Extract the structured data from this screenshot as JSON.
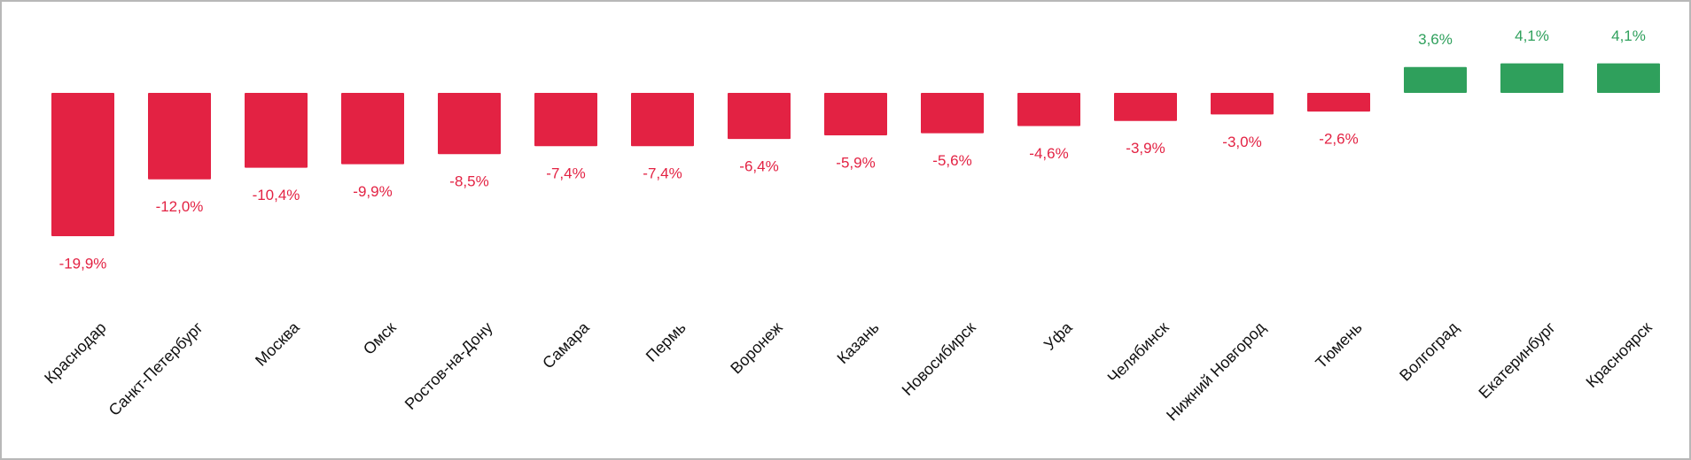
{
  "chart_data": {
    "type": "bar",
    "categories": [
      "Краснодар",
      "Санкт-Петербург",
      "Москва",
      "Омск",
      "Ростов-на-Дону",
      "Самара",
      "Пермь",
      "Воронеж",
      "Казань",
      "Новосибирск",
      "Уфа",
      "Челябинск",
      "Нижний Новгород",
      "Тюмень",
      "Волгоград",
      "Екатеринбург",
      "Красноярск"
    ],
    "values": [
      -19.9,
      -12.0,
      -10.4,
      -9.9,
      -8.5,
      -7.4,
      -7.4,
      -6.4,
      -5.9,
      -5.6,
      -4.6,
      -3.9,
      -3.0,
      -2.6,
      3.6,
      4.1,
      4.1
    ],
    "value_labels": [
      "-19,9%",
      "-12,0%",
      "-10,4%",
      "-9,9%",
      "-8,5%",
      "-7,4%",
      "-7,4%",
      "-6,4%",
      "-5,9%",
      "-5,6%",
      "-4,6%",
      "-3,9%",
      "-3,0%",
      "-2,6%",
      "3,6%",
      "4,1%",
      "4,1%"
    ],
    "negative_color": "#e32243",
    "positive_color": "#2fa05c",
    "grid": false
  }
}
